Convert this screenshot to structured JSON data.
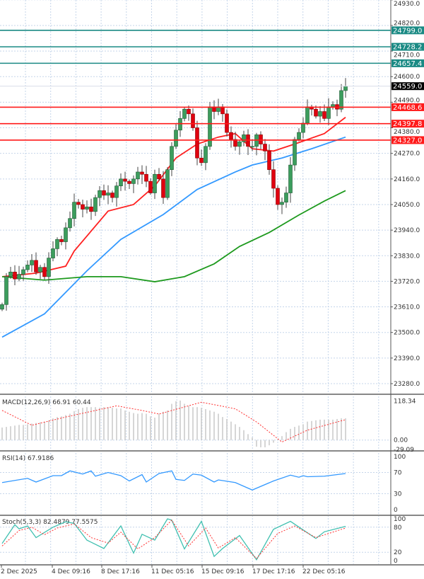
{
  "chart_data": [
    {
      "type": "candlestick",
      "title": "",
      "y_ticks": [
        24930.0,
        24820.0,
        24710.0,
        24600.0,
        24490.0,
        24380.0,
        24270.0,
        24160.0,
        24050.0,
        23940.0,
        23830.0,
        23720.0,
        23610.0,
        23500.0,
        23390.0,
        23280.0
      ],
      "ylim": [
        23280,
        24930
      ],
      "grid": true,
      "current_price": {
        "value": "24559.0",
        "color": "#000000"
      },
      "levels": [
        {
          "value": "24799.0",
          "color": "#1a8a84"
        },
        {
          "value": "24728.2",
          "color": "#1a8a84"
        },
        {
          "value": "24657.4",
          "color": "#1a8a84"
        },
        {
          "value": "24468.6",
          "color": "#ff1a1a"
        },
        {
          "value": "24397.8",
          "color": "#ff1a1a"
        },
        {
          "value": "24327.0",
          "color": "#ff1a1a"
        }
      ],
      "first_open": 23600,
      "closes": [
        23620,
        23740,
        23760,
        23730,
        23750,
        23770,
        23790,
        23810,
        23760,
        23780,
        23740,
        23820,
        23860,
        23900,
        23890,
        23950,
        23990,
        24060,
        24050,
        24030,
        24040,
        24020,
        24080,
        24110,
        24090,
        24100,
        24080,
        24130,
        24160,
        24150,
        24140,
        24160,
        24190,
        24180,
        24150,
        24100,
        24180,
        24160,
        24080,
        24200,
        24300,
        24370,
        24420,
        24460,
        24440,
        24380,
        24250,
        24230,
        24300,
        24470,
        24450,
        24470,
        24440,
        24360,
        24330,
        24300,
        24320,
        24350,
        24300,
        24300,
        24350,
        24310,
        24280,
        24200,
        24120,
        24050,
        24060,
        24100,
        24220,
        24330,
        24360,
        24400,
        24470,
        24460,
        24430,
        24450,
        24420,
        24470,
        24480,
        24460,
        24540,
        24559
      ],
      "moving_averages": [
        {
          "color": "#ff2020",
          "points": [
            [
              0,
              23740
            ],
            [
              8,
              23755
            ],
            [
              15,
              23785
            ],
            [
              17,
              23850
            ],
            [
              25,
              24022
            ],
            [
              31,
              24050
            ],
            [
              36,
              24130
            ],
            [
              41,
              24250
            ],
            [
              46,
              24310
            ],
            [
              51,
              24340
            ],
            [
              55,
              24355
            ],
            [
              59,
              24290
            ],
            [
              64,
              24280
            ],
            [
              69,
              24310
            ],
            [
              76,
              24355
            ],
            [
              81,
              24425
            ]
          ]
        },
        {
          "color": "#3399ff",
          "points": [
            [
              0,
              23480
            ],
            [
              10,
              23580
            ],
            [
              20,
              23765
            ],
            [
              28,
              23900
            ],
            [
              38,
              24007
            ],
            [
              46,
              24115
            ],
            [
              55,
              24190
            ],
            [
              59,
              24220
            ],
            [
              66,
              24250
            ],
            [
              73,
              24290
            ],
            [
              81,
              24340
            ]
          ]
        },
        {
          "color": "#1e9a1e",
          "points": [
            [
              0,
              23740
            ],
            [
              10,
              23725
            ],
            [
              20,
              23740
            ],
            [
              28,
              23740
            ],
            [
              36,
              23718
            ],
            [
              43,
              23740
            ],
            [
              50,
              23795
            ],
            [
              56,
              23870
            ],
            [
              63,
              23930
            ],
            [
              70,
              24005
            ],
            [
              76,
              24065
            ],
            [
              81,
              24110
            ]
          ]
        }
      ],
      "bull_color": "#3c9d5d",
      "bear_color": "#e0000f"
    },
    {
      "type": "macd",
      "label": "MACD(12,26,9) 66.91 60.44",
      "y_ticks": [
        "118.34",
        "0.00",
        "-29.09"
      ],
      "ylim": [
        -29.09,
        118.34
      ],
      "histogram": [
        38,
        40,
        42,
        44,
        46,
        46,
        48,
        50,
        52,
        54,
        56,
        60,
        66,
        70,
        72,
        76,
        80,
        88,
        94,
        98,
        100,
        100,
        100,
        98,
        100,
        100,
        98,
        96,
        96,
        90,
        86,
        82,
        80,
        82,
        80,
        72,
        68,
        80,
        86,
        90,
        110,
        118,
        120,
        110,
        104,
        100,
        100,
        98,
        94,
        90,
        86,
        80,
        70,
        64,
        56,
        48,
        40,
        30,
        18,
        8,
        -20,
        -22,
        -22,
        -16,
        -8,
        2,
        12,
        24,
        34,
        40,
        44,
        48,
        56,
        58,
        60,
        62,
        62,
        62,
        62,
        64,
        66,
        66
      ],
      "signal": [
        [
          0,
          90
        ],
        [
          7,
          45
        ],
        [
          15,
          70
        ],
        [
          27,
          104
        ],
        [
          33,
          90
        ],
        [
          37,
          79
        ],
        [
          47,
          115
        ],
        [
          55,
          95
        ],
        [
          60,
          55
        ],
        [
          66,
          -6
        ],
        [
          72,
          30
        ],
        [
          81,
          62
        ]
      ],
      "histogram_color": "#c8c8c8",
      "signal_color": "#ff3030"
    },
    {
      "type": "line",
      "label": "RSI(14) 67.9186",
      "y_ticks": [
        "100",
        "70",
        "30",
        "0"
      ],
      "ylim": [
        0,
        100
      ],
      "series": [
        [
          0,
          51
        ],
        [
          6,
          59
        ],
        [
          8,
          52
        ],
        [
          12,
          64
        ],
        [
          14,
          64
        ],
        [
          16,
          73
        ],
        [
          19,
          67
        ],
        [
          21,
          73
        ],
        [
          22,
          63
        ],
        [
          25,
          70
        ],
        [
          28,
          64
        ],
        [
          30,
          54
        ],
        [
          33,
          66
        ],
        [
          34,
          52
        ],
        [
          37,
          68
        ],
        [
          40,
          73
        ],
        [
          41,
          57
        ],
        [
          43,
          55
        ],
        [
          45,
          67
        ],
        [
          47,
          65
        ],
        [
          50,
          52
        ],
        [
          51,
          56
        ],
        [
          55,
          51
        ],
        [
          59,
          37
        ],
        [
          64,
          54
        ],
        [
          68,
          65
        ],
        [
          70,
          61
        ],
        [
          71,
          64
        ],
        [
          72,
          62
        ],
        [
          76,
          63
        ],
        [
          78,
          65
        ],
        [
          81,
          68
        ]
      ],
      "color": "#3399ff"
    },
    {
      "type": "line",
      "label": "Stoch(5,3,3) 82.4879 77.5575",
      "y_ticks": [
        "100",
        "80",
        "20",
        "0"
      ],
      "ylim": [
        0,
        100
      ],
      "main": [
        [
          0,
          41
        ],
        [
          3,
          86
        ],
        [
          4,
          76
        ],
        [
          6,
          83
        ],
        [
          8,
          55
        ],
        [
          12,
          80
        ],
        [
          15,
          93
        ],
        [
          17,
          89
        ],
        [
          20,
          49
        ],
        [
          24,
          29
        ],
        [
          28,
          83
        ],
        [
          31,
          18
        ],
        [
          33,
          63
        ],
        [
          36,
          49
        ],
        [
          39,
          100
        ],
        [
          40,
          97
        ],
        [
          43,
          28
        ],
        [
          47,
          94
        ],
        [
          50,
          10
        ],
        [
          52,
          29
        ],
        [
          56,
          60
        ],
        [
          60,
          2
        ],
        [
          64,
          75
        ],
        [
          68,
          94
        ],
        [
          74,
          53
        ],
        [
          76,
          69
        ],
        [
          81,
          82
        ]
      ],
      "signal": [
        [
          0,
          35
        ],
        [
          4,
          72
        ],
        [
          7,
          80
        ],
        [
          10,
          62
        ],
        [
          13,
          78
        ],
        [
          17,
          88
        ],
        [
          21,
          55
        ],
        [
          25,
          42
        ],
        [
          28,
          68
        ],
        [
          32,
          28
        ],
        [
          36,
          55
        ],
        [
          40,
          97
        ],
        [
          44,
          35
        ],
        [
          48,
          78
        ],
        [
          51,
          30
        ],
        [
          55,
          55
        ],
        [
          60,
          5
        ],
        [
          65,
          65
        ],
        [
          69,
          83
        ],
        [
          74,
          55
        ],
        [
          81,
          78
        ]
      ],
      "main_color": "#40c0b0",
      "signal_color": "#ff3030"
    }
  ],
  "x_axis": {
    "labels": [
      "2 Dec 2025",
      "4 Dec 09:16",
      "8 Dec 17:16",
      "11 Dec 05:16",
      "15 Dec 09:16",
      "17 Dec 17:16",
      "22 Dec 05:16"
    ]
  }
}
